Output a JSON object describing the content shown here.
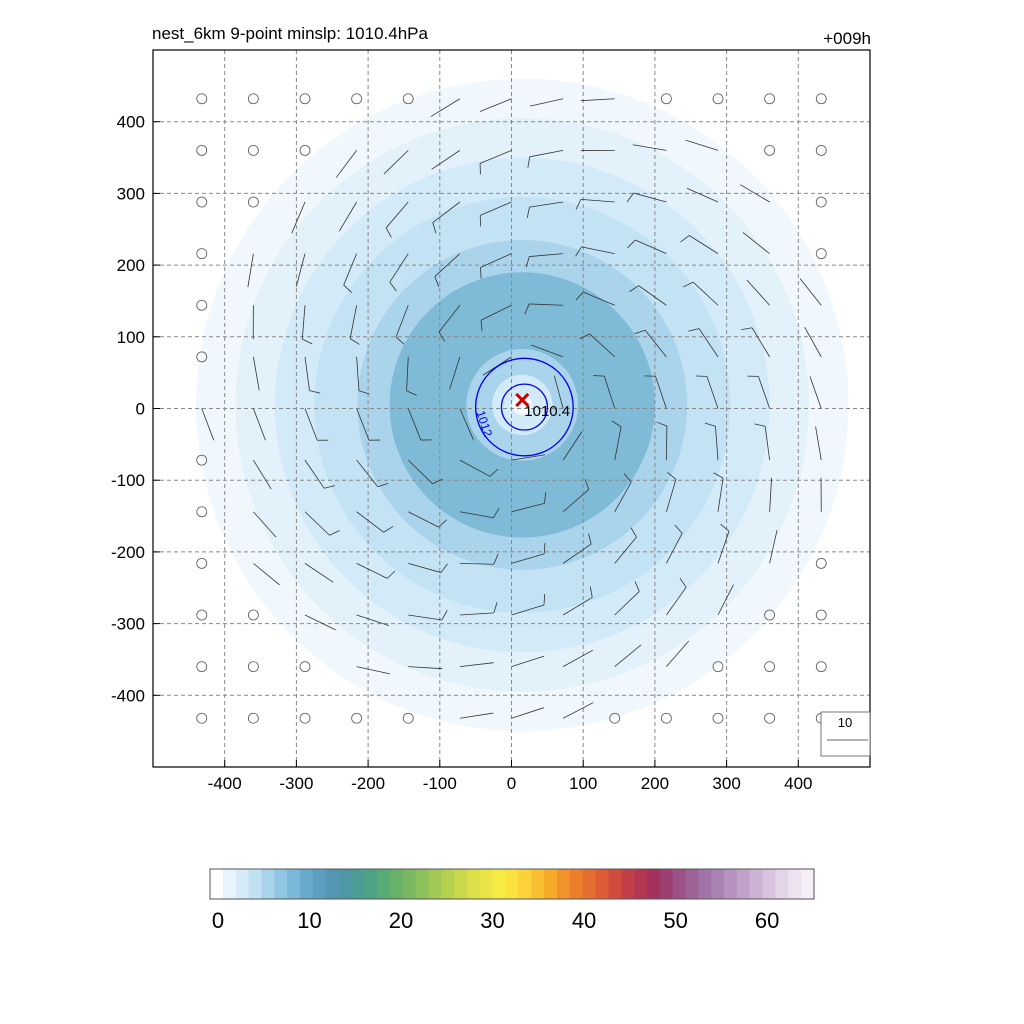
{
  "chart_data": {
    "type": "heatmap",
    "title": "nest_6km  9-point minslp: 1010.4hPa",
    "forecast_hour": "+009h",
    "xlabel": "",
    "ylabel": "",
    "xlim": [
      -500,
      500
    ],
    "ylim": [
      -500,
      500
    ],
    "x_ticks": [
      "-400",
      "-300",
      "-200",
      "-100",
      "0",
      "100",
      "200",
      "300",
      "400"
    ],
    "y_ticks": [
      "400",
      "300",
      "200",
      "100",
      "0",
      "-100",
      "-200",
      "-300",
      "-400"
    ],
    "x_tick_values": [
      -400,
      -300,
      -200,
      -100,
      0,
      100,
      200,
      300,
      400
    ],
    "y_tick_values": [
      400,
      300,
      200,
      100,
      0,
      -100,
      -200,
      -300,
      -400
    ],
    "grid": true,
    "grid_spacing": 100,
    "wind_speed_field": {
      "center": [
        15,
        5
      ],
      "rings": [
        {
          "radius": 455,
          "value": 2,
          "color": "#f1f8fd"
        },
        {
          "radius": 400,
          "value": 4,
          "color": "#e3f1fb"
        },
        {
          "radius": 345,
          "value": 6,
          "color": "#d3eaf8"
        },
        {
          "radius": 290,
          "value": 8,
          "color": "#c3e3f5"
        },
        {
          "radius": 230,
          "value": 10,
          "color": "#a9d4ec"
        },
        {
          "radius": 185,
          "value": 12,
          "color": "#7fbbd7"
        },
        {
          "radius": 78,
          "value": 10,
          "color": "#a9d4ec"
        },
        {
          "radius": 42,
          "value": 6,
          "color": "#d3eaf8"
        },
        {
          "radius": 14,
          "value": 2,
          "color": "#f3f9fd"
        }
      ]
    },
    "pressure_contours": [
      {
        "level": 1012,
        "label": "1012",
        "radius": 68,
        "color": "#0000ee"
      },
      {
        "level": 1011,
        "label": "",
        "radius": 32,
        "color": "#0000ee"
      }
    ],
    "minimum_pressure": {
      "x": 15,
      "y": 12,
      "label": "1010.4",
      "marker": "x",
      "color": "#cc0000"
    },
    "wind_barbs": {
      "grid_spacing": 72,
      "range": [
        -432,
        432
      ],
      "calm_threshold_radius": 450
    },
    "barb_legend": {
      "label": "10"
    },
    "colorbar": {
      "min": 0,
      "max": 66,
      "ticks": [
        0,
        10,
        20,
        30,
        40,
        50,
        60
      ],
      "tick_labels": [
        "0",
        "10",
        "20",
        "30",
        "40",
        "50",
        "60"
      ],
      "colors": [
        "#ffffff",
        "#e8f4fb",
        "#d5ebf7",
        "#c2e2f3",
        "#a9d4ec",
        "#90c6e3",
        "#7ab8d9",
        "#68aacc",
        "#5b9ec0",
        "#5597b3",
        "#4e97a5",
        "#4a9c95",
        "#4ea386",
        "#58aa77",
        "#67b169",
        "#79b861",
        "#8cc15b",
        "#a2c955",
        "#b6d050",
        "#cad84c",
        "#dbe048",
        "#eae546",
        "#f6ea44",
        "#fbe33f",
        "#fbd23a",
        "#f9bf32",
        "#f6aa2a",
        "#f1932a",
        "#ec7f2b",
        "#e66d30",
        "#de5c35",
        "#d14c3d",
        "#c23f48",
        "#b43752",
        "#a3335d",
        "#9e3f72",
        "#9c5286",
        "#9c6397",
        "#a172a7",
        "#aa82b4",
        "#b592c0",
        "#c1a3ca",
        "#ccb3d4",
        "#d7c3de",
        "#e3d4e8",
        "#ede3f0",
        "#f6eff8"
      ]
    }
  }
}
